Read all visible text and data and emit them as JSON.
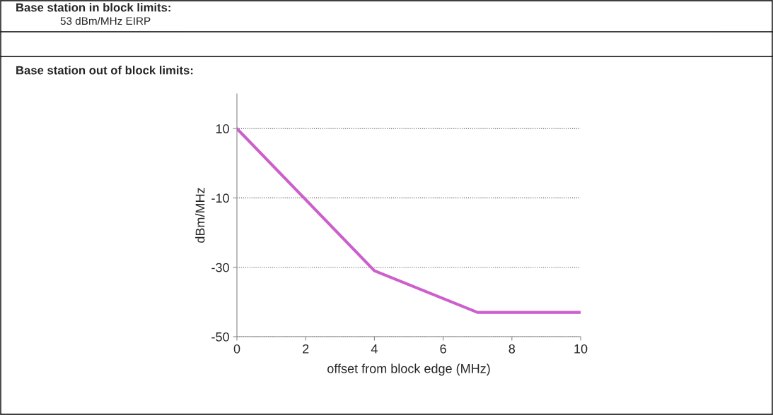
{
  "chart_data": {
    "type": "line",
    "title": "Base station in block limits:",
    "subtitle": "53 dBm/MHz EIRP",
    "annotations": [
      "Base station out of block limits:"
    ],
    "xlabel": "offset from block edge (MHz)",
    "ylabel": "dBm/MHz",
    "x": [
      0,
      4,
      7,
      10
    ],
    "series": [
      {
        "color": "#cc5fcc",
        "values": [
          10,
          -31,
          -43,
          -43
        ]
      }
    ],
    "xlim": [
      0,
      10
    ],
    "xticks": [
      0,
      2,
      4,
      6,
      8,
      10
    ],
    "ylim": [
      -50,
      20
    ],
    "yticks": [
      -50,
      -30,
      -10,
      10
    ],
    "grid": "y",
    "marker": "none",
    "line_style": "solid"
  }
}
